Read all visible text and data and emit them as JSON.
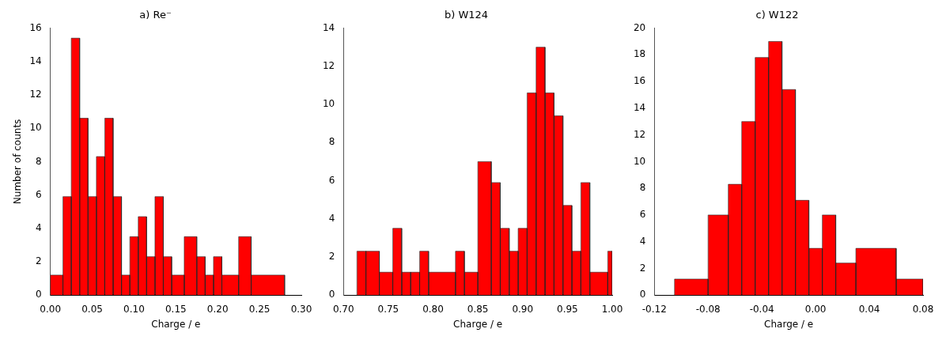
{
  "chart_data": [
    {
      "type": "histogram",
      "title": "a) Re⁻",
      "xlabel": "Charge / e",
      "ylabel": "Number of counts",
      "color": "#ff0000",
      "bins": [
        0,
        0.015,
        0.025,
        0.035,
        0.045,
        0.055,
        0.065,
        0.075,
        0.085,
        0.095,
        0.105,
        0.115,
        0.125,
        0.135,
        0.145,
        0.16,
        0.175,
        0.185,
        0.195,
        0.205,
        0.225,
        0.24,
        0.28
      ],
      "values": [
        1.2,
        5.9,
        15.4,
        10.6,
        5.9,
        8.3,
        10.6,
        5.9,
        1.2,
        3.5,
        4.7,
        2.3,
        5.9,
        2.3,
        1.2,
        3.5,
        2.3,
        1.2,
        2.3,
        1.2,
        3.5,
        1.2
      ],
      "xlim": [
        0,
        0.3
      ],
      "xticks": [
        {
          "value": 0,
          "label": "0.00"
        },
        0.05,
        {
          "value": 0.1,
          "label": "0.10"
        },
        0.15,
        {
          "value": 0.2,
          "label": "0.20"
        },
        0.25,
        {
          "value": 0.3,
          "label": "0.30"
        }
      ],
      "ylim": [
        0,
        16
      ],
      "yticks": [
        0,
        2,
        4,
        6,
        8,
        10,
        12,
        14,
        16
      ],
      "grid": false
    },
    {
      "type": "histogram",
      "title": "b) W124",
      "xlabel": "Charge / e",
      "color": "#ff0000",
      "bins": [
        0.715,
        0.725,
        0.74,
        0.755,
        0.765,
        0.775,
        0.785,
        0.795,
        0.825,
        0.835,
        0.85,
        0.865,
        0.875,
        0.885,
        0.895,
        0.905,
        0.915,
        0.925,
        0.935,
        0.945,
        0.955,
        0.965,
        0.975,
        0.995,
        1.0
      ],
      "values": [
        2.3,
        2.3,
        1.2,
        3.5,
        1.2,
        1.2,
        2.3,
        1.2,
        2.3,
        1.2,
        7.0,
        5.9,
        3.5,
        2.3,
        3.5,
        10.6,
        13.0,
        10.6,
        9.4,
        4.7,
        2.3,
        5.9,
        1.2,
        2.3
      ],
      "xlim": [
        0.7,
        1.0
      ],
      "xticks": [
        {
          "value": 0.7,
          "label": "0.70"
        },
        0.75,
        {
          "value": 0.8,
          "label": "0.80"
        },
        0.85,
        {
          "value": 0.9,
          "label": "0.90"
        },
        0.95,
        {
          "value": 1.0,
          "label": "1.00"
        }
      ],
      "ylim": [
        0,
        14
      ],
      "yticks": [
        0,
        2,
        4,
        6,
        8,
        10,
        12,
        14
      ],
      "grid": false
    },
    {
      "type": "histogram",
      "title": "c) W122",
      "xlabel": "Charge / e",
      "color": "#ff0000",
      "bins": [
        -0.105,
        -0.08,
        -0.065,
        -0.055,
        -0.045,
        -0.035,
        -0.025,
        -0.015,
        -0.005,
        0.005,
        0.015,
        0.03,
        0.06,
        0.08
      ],
      "values": [
        1.2,
        6.0,
        8.3,
        13.0,
        17.8,
        19.0,
        15.4,
        7.1,
        3.5,
        6.0,
        2.4,
        3.5,
        1.2
      ],
      "xlim": [
        -0.12,
        0.08
      ],
      "xticks": [
        -0.12,
        -0.08,
        -0.04,
        {
          "value": 0,
          "label": "0.00"
        },
        0.04,
        0.08
      ],
      "ylim": [
        0,
        20
      ],
      "yticks": [
        0,
        2,
        4,
        6,
        8,
        10,
        12,
        14,
        16,
        18,
        20
      ],
      "grid": false
    }
  ]
}
